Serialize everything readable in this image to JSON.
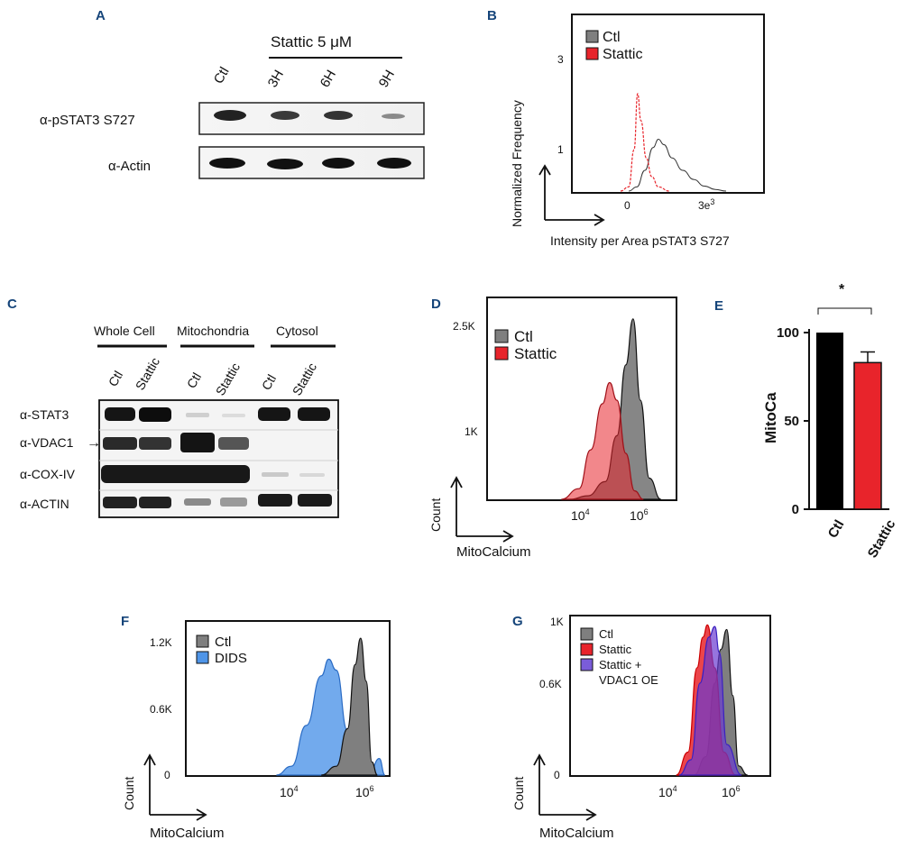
{
  "panels": {
    "A": {
      "label": "A",
      "treatment_header": "Stattic 5 μM",
      "lanes": [
        "Ctl",
        "3H",
        "6H",
        "9H"
      ],
      "rows": [
        "α-pSTAT3 S727",
        "α-Actin"
      ]
    },
    "B": {
      "label": "B",
      "ylabel": "Normalized Frequency",
      "xlabel": "Intensity per Area pSTAT3 S727"
    },
    "C": {
      "label": "C",
      "fractions": [
        "Whole Cell",
        "Mitochondria",
        "Cytosol"
      ],
      "lanes": [
        "Ctl",
        "Stattic",
        "Ctl",
        "Stattic",
        "Ctl",
        "Stattic"
      ],
      "rows": [
        "α-STAT3",
        "α-VDAC1",
        "α-COX-IV",
        "α-ACTIN"
      ],
      "arrow_glyph": "→"
    },
    "D": {
      "label": "D",
      "ylabel": "Count",
      "xlabel": "MitoCalcium"
    },
    "E": {
      "label": "E",
      "ylabel": "MitoCa",
      "significance": "*"
    },
    "F": {
      "label": "F",
      "ylabel": "Count",
      "xlabel": "MitoCalcium"
    },
    "G": {
      "label": "G",
      "ylabel": "Count",
      "xlabel": "MitoCalcium"
    }
  },
  "colors": {
    "panel_label": "#16457a",
    "ctl_gray": "#7f7f7f",
    "stattic_red": "#e8242b",
    "dids_blue": "#4f95e8",
    "vdac_purple": "#7a5cd9",
    "overlap_purple": "#6a2a7a",
    "bar_black": "#000000"
  },
  "chart_data": [
    {
      "panel": "B",
      "type": "line",
      "title": "",
      "xlabel": "Intensity per Area pSTAT3 S727",
      "ylabel": "Normalized Frequency",
      "xtick_labels": [
        "0",
        "3e3"
      ],
      "ytick_labels": [
        "1",
        "3"
      ],
      "legend": [
        "Ctl",
        "Stattic"
      ],
      "legend_position": "top-left",
      "series": [
        {
          "name": "Ctl",
          "x": [
            0,
            300,
            600,
            900,
            1100,
            1300,
            1600,
            2000,
            2400,
            2800,
            3200,
            3600
          ],
          "y": [
            0,
            0.1,
            0.5,
            1.05,
            1.25,
            1.12,
            0.8,
            0.5,
            0.28,
            0.12,
            0.04,
            0
          ]
        },
        {
          "name": "Stattic",
          "x": [
            -300,
            0,
            200,
            330,
            450,
            650,
            850,
            1100,
            1500
          ],
          "y": [
            0,
            0.1,
            1.0,
            2.35,
            1.7,
            0.8,
            0.35,
            0.1,
            0
          ]
        }
      ]
    },
    {
      "panel": "D",
      "type": "area",
      "xscale": "log",
      "xtick_labels": [
        "10^4",
        "10^6"
      ],
      "ytick_labels": [
        "1K",
        "2.5K"
      ],
      "xlabel": "MitoCalcium",
      "ylabel": "Count",
      "legend": [
        "Ctl",
        "Stattic"
      ],
      "legend_position": "top-left",
      "series": [
        {
          "name": "Ctl",
          "log10x": [
            3.6,
            4.2,
            4.8,
            5.2,
            5.5,
            5.75,
            6.0,
            6.3,
            6.7
          ],
          "y": [
            0,
            50,
            250,
            900,
            1900,
            2550,
            1400,
            300,
            0
          ]
        },
        {
          "name": "Stattic",
          "log10x": [
            3.3,
            3.9,
            4.3,
            4.7,
            4.95,
            5.2,
            5.5,
            5.8,
            6.1
          ],
          "y": [
            0,
            150,
            700,
            1350,
            1650,
            1400,
            650,
            120,
            0
          ]
        }
      ]
    },
    {
      "panel": "E",
      "type": "bar",
      "categories": [
        "Ctl",
        "Stattic"
      ],
      "values": [
        100,
        83
      ],
      "errors": [
        0,
        6
      ],
      "ylabel": "MitoCa",
      "ylim": [
        0,
        100
      ],
      "ytick_labels": [
        "0",
        "50",
        "100"
      ],
      "annotation": "*"
    },
    {
      "panel": "F",
      "type": "area",
      "xscale": "log",
      "xtick_labels": [
        "10^4",
        "10^6"
      ],
      "ytick_labels": [
        "0",
        "0.6K",
        "1.2K"
      ],
      "xlabel": "MitoCalcium",
      "ylabel": "Count",
      "legend": [
        "Ctl",
        "DIDS"
      ],
      "legend_position": "top-left",
      "series": [
        {
          "name": "Ctl",
          "log10x": [
            4.8,
            5.2,
            5.5,
            5.7,
            5.85,
            6.0,
            6.15,
            6.3
          ],
          "y": [
            0,
            80,
            420,
            1000,
            1240,
            850,
            120,
            0
          ]
        },
        {
          "name": "DIDS",
          "log10x": [
            3.6,
            4.0,
            4.4,
            4.8,
            5.0,
            5.2,
            5.5,
            5.8,
            6.1,
            6.35,
            6.5
          ],
          "y": [
            0,
            80,
            450,
            900,
            1050,
            950,
            400,
            60,
            30,
            150,
            0
          ]
        }
      ]
    },
    {
      "panel": "G",
      "type": "area",
      "xscale": "log",
      "xtick_labels": [
        "10^4",
        "10^6"
      ],
      "ytick_labels": [
        "0",
        "0.6K",
        "1K"
      ],
      "xlabel": "MitoCalcium",
      "ylabel": "Count",
      "legend": [
        "Ctl",
        "Stattic",
        "Stattic + VDAC1 OE"
      ],
      "legend_position": "top-left",
      "series": [
        {
          "name": "Ctl",
          "log10x": [
            4.8,
            5.2,
            5.5,
            5.7,
            5.9,
            6.1,
            6.3,
            6.6
          ],
          "y": [
            0,
            120,
            600,
            820,
            950,
            520,
            60,
            0
          ]
        },
        {
          "name": "Stattic",
          "log10x": [
            4.2,
            4.6,
            4.9,
            5.1,
            5.25,
            5.5,
            5.8,
            6.2
          ],
          "y": [
            0,
            150,
            700,
            900,
            980,
            700,
            150,
            0
          ]
        },
        {
          "name": "Stattic + VDAC1 OE",
          "log10x": [
            4.3,
            4.7,
            5.0,
            5.3,
            5.5,
            5.65,
            5.9,
            6.4
          ],
          "y": [
            0,
            100,
            600,
            900,
            970,
            800,
            200,
            0
          ]
        }
      ]
    }
  ]
}
